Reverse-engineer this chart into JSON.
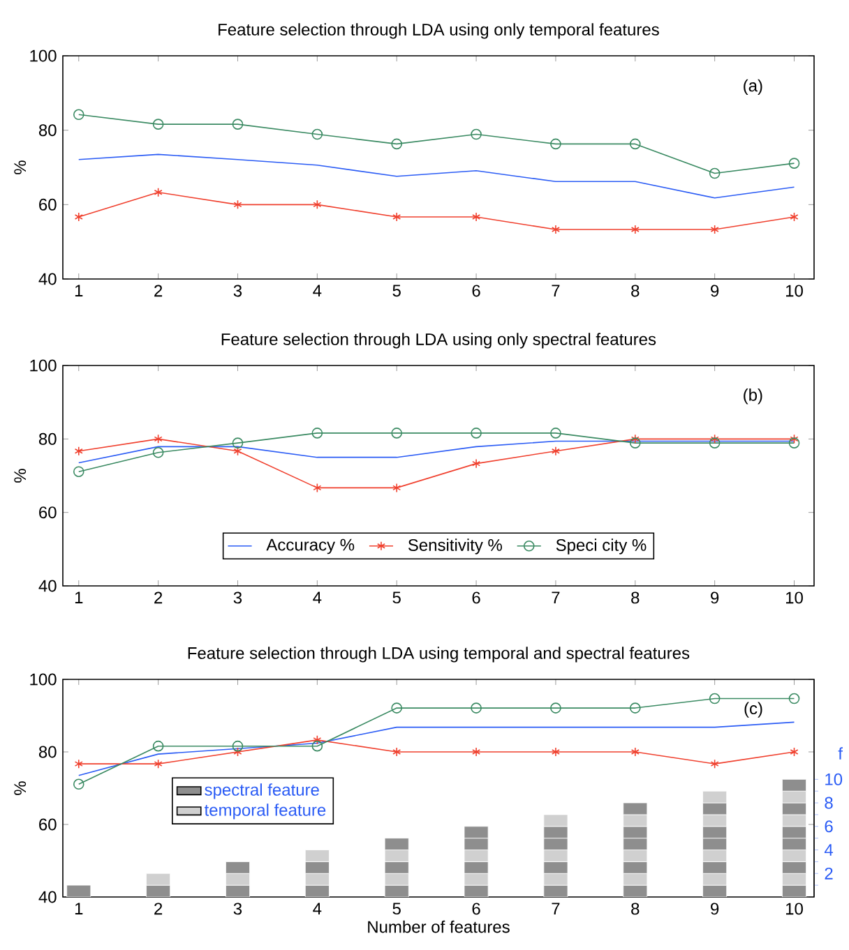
{
  "chart_data": [
    {
      "type": "line",
      "title": "Feature selection through LDA using only temporal features",
      "ylabel": "%",
      "x": [
        1,
        2,
        3,
        4,
        5,
        6,
        7,
        8,
        9,
        10
      ],
      "xlim": [
        0.8,
        10.25
      ],
      "xticks": [
        1,
        2,
        3,
        4,
        5,
        6,
        7,
        8,
        9,
        10
      ],
      "ylim": [
        40,
        100
      ],
      "yticks": [
        40,
        60,
        80,
        100
      ],
      "annotations": [
        "(a)"
      ],
      "series": [
        {
          "color": "#2b5cf5",
          "marker": "none",
          "values": [
            72.1,
            73.5,
            72.1,
            70.6,
            67.6,
            69.1,
            66.2,
            66.2,
            61.8,
            64.7
          ]
        },
        {
          "color": "#f0402e",
          "marker": "cross",
          "values": [
            56.7,
            63.3,
            60.0,
            60.0,
            56.7,
            56.7,
            53.3,
            53.3,
            53.3,
            56.7
          ]
        },
        {
          "color": "#3a8a62",
          "marker": "circle",
          "values": [
            84.2,
            81.6,
            81.6,
            78.9,
            76.3,
            78.9,
            76.3,
            76.3,
            68.4,
            71.1
          ]
        }
      ]
    },
    {
      "type": "line",
      "title": "Feature selection through LDA using only spectral features",
      "ylabel": "%",
      "x": [
        1,
        2,
        3,
        4,
        5,
        6,
        7,
        8,
        9,
        10
      ],
      "xlim": [
        0.8,
        10.25
      ],
      "xticks": [
        1,
        2,
        3,
        4,
        5,
        6,
        7,
        8,
        9,
        10
      ],
      "ylim": [
        40,
        100
      ],
      "yticks": [
        40,
        60,
        80,
        100
      ],
      "annotations": [
        "(b)"
      ],
      "legend": "bottom",
      "series": [
        {
          "name": "Accuracy %",
          "color": "#2b5cf5",
          "marker": "none",
          "values": [
            73.5,
            77.9,
            77.9,
            75.0,
            75.0,
            77.9,
            79.4,
            79.4,
            79.4,
            79.4
          ]
        },
        {
          "name": "Sensitivity %",
          "color": "#f0402e",
          "marker": "cross",
          "values": [
            76.7,
            80.0,
            76.7,
            66.7,
            66.7,
            73.3,
            76.7,
            80.0,
            80.0,
            80.0
          ]
        },
        {
          "name": "Speci city %",
          "color": "#3a8a62",
          "marker": "circle",
          "values": [
            71.1,
            76.3,
            78.9,
            81.6,
            81.6,
            81.6,
            81.6,
            78.9,
            78.9,
            78.9
          ]
        }
      ]
    },
    {
      "type": "line",
      "title": "Feature selection through LDA using temporal and spectral features",
      "xlabel": "Number of features",
      "ylabel": "%",
      "y2label": "f",
      "x": [
        1,
        2,
        3,
        4,
        5,
        6,
        7,
        8,
        9,
        10
      ],
      "xlim": [
        0.8,
        10.25
      ],
      "xticks": [
        1,
        2,
        3,
        4,
        5,
        6,
        7,
        8,
        9,
        10
      ],
      "ylim": [
        40,
        100
      ],
      "yticks": [
        40,
        60,
        80,
        100
      ],
      "y2lim": [
        0,
        18.5
      ],
      "y2ticks": [
        {
          "value": 1,
          "label": null
        },
        2,
        {
          "value": 3,
          "label": null
        },
        4,
        {
          "value": 5,
          "label": null
        },
        6,
        {
          "value": 7,
          "label": null
        },
        8,
        {
          "value": 9,
          "label": null
        },
        10
      ],
      "annotations": [
        "(c)"
      ],
      "legend": "left",
      "stacked": true,
      "series": [
        {
          "color": "#2b5cf5",
          "marker": "none",
          "values": [
            73.5,
            79.4,
            80.9,
            82.4,
            86.8,
            86.8,
            86.8,
            86.8,
            86.8,
            88.2
          ]
        },
        {
          "color": "#f0402e",
          "marker": "cross",
          "values": [
            76.7,
            76.7,
            80.0,
            83.3,
            80.0,
            80.0,
            80.0,
            80.0,
            76.7,
            80.0
          ]
        },
        {
          "color": "#3a8a62",
          "marker": "circle",
          "values": [
            71.1,
            81.6,
            81.6,
            81.6,
            92.1,
            92.1,
            92.1,
            92.1,
            94.7,
            94.7
          ]
        },
        {
          "type": "bar",
          "axis": "y2",
          "name": "spectral feature",
          "color": "#8e8e8e",
          "values": [
            1,
            1,
            1,
            1,
            1,
            1,
            1,
            1,
            1,
            1
          ]
        },
        {
          "type": "bar",
          "axis": "y2",
          "name": "temporal feature",
          "color": "#d0d0d0",
          "values": [
            null,
            1,
            1,
            1,
            1,
            1,
            1,
            1,
            1,
            1
          ]
        },
        {
          "type": "bar",
          "axis": "y2",
          "color": "#8e8e8e",
          "values": [
            null,
            null,
            1,
            1,
            1,
            1,
            1,
            1,
            1,
            1
          ]
        },
        {
          "type": "bar",
          "axis": "y2",
          "color": "#d0d0d0",
          "values": [
            null,
            null,
            null,
            1,
            1,
            1,
            1,
            1,
            1,
            1
          ]
        },
        {
          "type": "bar",
          "axis": "y2",
          "color": "#8e8e8e",
          "values": [
            null,
            null,
            null,
            null,
            1,
            1,
            1,
            1,
            1,
            1
          ]
        },
        {
          "type": "bar",
          "axis": "y2",
          "color": "#8e8e8e",
          "values": [
            null,
            null,
            null,
            null,
            null,
            1,
            1,
            1,
            1,
            1
          ]
        },
        {
          "type": "bar",
          "axis": "y2",
          "color": "#d0d0d0",
          "values": [
            null,
            null,
            null,
            null,
            null,
            null,
            1,
            1,
            1,
            1
          ]
        },
        {
          "type": "bar",
          "axis": "y2",
          "color": "#8e8e8e",
          "values": [
            null,
            null,
            null,
            null,
            null,
            null,
            null,
            1,
            1,
            1
          ]
        },
        {
          "type": "bar",
          "axis": "y2",
          "color": "#d0d0d0",
          "values": [
            null,
            null,
            null,
            null,
            null,
            null,
            null,
            null,
            1,
            1
          ]
        },
        {
          "type": "bar",
          "axis": "y2",
          "color": "#8e8e8e",
          "values": [
            null,
            null,
            null,
            null,
            null,
            null,
            null,
            null,
            null,
            1
          ]
        }
      ]
    }
  ]
}
